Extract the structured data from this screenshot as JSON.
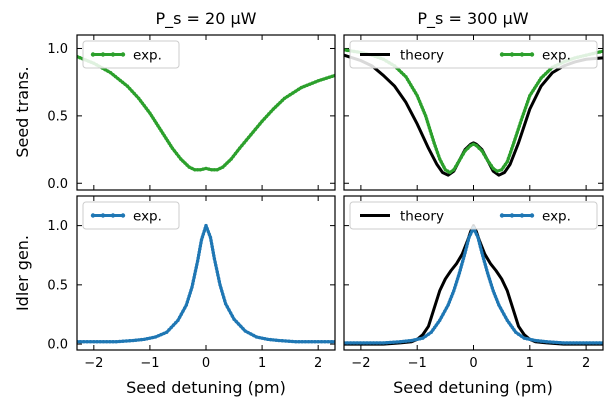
{
  "figure": {
    "column_titles": [
      "P_s = 20 μW",
      "P_s = 300 μW"
    ],
    "row_labels": [
      "Seed trans.",
      "Idler gen."
    ],
    "xlabel": "Seed detuning (pm)"
  },
  "colors": {
    "theory": "#000000",
    "seed_exp": "#2ca02c",
    "idler_exp": "#1f77b4"
  },
  "chart_data": [
    {
      "id": "seed_20uW",
      "type": "line",
      "title": "P_s = 20 μW",
      "ylabel": "Seed trans.",
      "xlabel": "",
      "xlim": [
        -2.3,
        2.3
      ],
      "ylim": [
        -0.05,
        1.1
      ],
      "xticks": [
        -2,
        -1,
        0,
        1,
        2
      ],
      "yticks": [
        0.0,
        0.5,
        1.0
      ],
      "legend": "top-left",
      "series": [
        {
          "name": "exp.",
          "color": "#2ca02c",
          "x": [
            -2.3,
            -2.0,
            -1.7,
            -1.4,
            -1.2,
            -1.0,
            -0.8,
            -0.6,
            -0.45,
            -0.3,
            -0.2,
            -0.1,
            0.0,
            0.1,
            0.2,
            0.3,
            0.45,
            0.6,
            0.8,
            1.0,
            1.2,
            1.4,
            1.7,
            2.0,
            2.3
          ],
          "y": [
            0.94,
            0.89,
            0.82,
            0.72,
            0.63,
            0.52,
            0.39,
            0.26,
            0.18,
            0.12,
            0.1,
            0.1,
            0.11,
            0.1,
            0.1,
            0.12,
            0.18,
            0.26,
            0.36,
            0.46,
            0.55,
            0.63,
            0.71,
            0.76,
            0.8
          ]
        }
      ]
    },
    {
      "id": "seed_300uW",
      "type": "line",
      "title": "P_s = 300 μW",
      "ylabel": "",
      "xlabel": "",
      "xlim": [
        -2.3,
        2.3
      ],
      "ylim": [
        -0.05,
        1.1
      ],
      "xticks": [
        -2,
        -1,
        0,
        1,
        2
      ],
      "yticks": [
        0.0,
        0.5,
        1.0
      ],
      "legend": "top",
      "series": [
        {
          "name": "theory",
          "color": "#000000",
          "x": [
            -2.3,
            -2.0,
            -1.8,
            -1.6,
            -1.4,
            -1.2,
            -1.0,
            -0.8,
            -0.65,
            -0.55,
            -0.45,
            -0.35,
            -0.25,
            -0.15,
            -0.05,
            0.0,
            0.05,
            0.15,
            0.25,
            0.35,
            0.45,
            0.55,
            0.65,
            0.8,
            1.0,
            1.2,
            1.4,
            1.6,
            1.8,
            2.0,
            2.3
          ],
          "y": [
            0.95,
            0.91,
            0.87,
            0.8,
            0.72,
            0.6,
            0.44,
            0.26,
            0.14,
            0.08,
            0.06,
            0.09,
            0.17,
            0.25,
            0.29,
            0.3,
            0.29,
            0.25,
            0.17,
            0.09,
            0.06,
            0.08,
            0.14,
            0.3,
            0.55,
            0.72,
            0.82,
            0.87,
            0.9,
            0.92,
            0.93
          ]
        },
        {
          "name": "exp.",
          "color": "#2ca02c",
          "x": [
            -2.3,
            -2.0,
            -1.8,
            -1.6,
            -1.4,
            -1.2,
            -1.0,
            -0.85,
            -0.7,
            -0.6,
            -0.5,
            -0.42,
            -0.35,
            -0.25,
            -0.15,
            -0.05,
            0.0,
            0.05,
            0.15,
            0.25,
            0.35,
            0.42,
            0.5,
            0.6,
            0.7,
            0.85,
            1.0,
            1.2,
            1.4,
            1.6,
            1.8,
            2.0,
            2.3
          ],
          "y": [
            0.99,
            0.97,
            0.95,
            0.92,
            0.87,
            0.79,
            0.65,
            0.5,
            0.3,
            0.18,
            0.1,
            0.08,
            0.1,
            0.17,
            0.24,
            0.28,
            0.29,
            0.28,
            0.24,
            0.17,
            0.11,
            0.09,
            0.1,
            0.16,
            0.28,
            0.47,
            0.65,
            0.78,
            0.86,
            0.9,
            0.93,
            0.95,
            0.98
          ]
        }
      ]
    },
    {
      "id": "idler_20uW",
      "type": "line",
      "title": "",
      "ylabel": "Idler gen.",
      "xlabel": "Seed detuning (pm)",
      "xlim": [
        -2.3,
        2.3
      ],
      "ylim": [
        -0.05,
        1.25
      ],
      "xticks": [
        -2,
        -1,
        0,
        1,
        2
      ],
      "yticks": [
        0.0,
        0.5,
        1.0
      ],
      "legend": "top-left",
      "series": [
        {
          "name": "exp.",
          "color": "#1f77b4",
          "x": [
            -2.3,
            -2.0,
            -1.6,
            -1.3,
            -1.1,
            -0.9,
            -0.7,
            -0.5,
            -0.35,
            -0.25,
            -0.15,
            -0.08,
            0.0,
            0.08,
            0.15,
            0.25,
            0.35,
            0.5,
            0.7,
            0.9,
            1.1,
            1.3,
            1.6,
            2.0,
            2.3
          ],
          "y": [
            0.02,
            0.02,
            0.02,
            0.03,
            0.04,
            0.06,
            0.1,
            0.2,
            0.33,
            0.48,
            0.7,
            0.88,
            1.0,
            0.9,
            0.72,
            0.5,
            0.34,
            0.21,
            0.11,
            0.06,
            0.04,
            0.03,
            0.02,
            0.02,
            0.02
          ]
        }
      ]
    },
    {
      "id": "idler_300uW",
      "type": "line",
      "title": "",
      "ylabel": "",
      "xlabel": "Seed detuning (pm)",
      "xlim": [
        -2.3,
        2.3
      ],
      "ylim": [
        -0.05,
        1.25
      ],
      "xticks": [
        -2,
        -1,
        0,
        1,
        2
      ],
      "yticks": [
        0.0,
        0.5,
        1.0
      ],
      "legend": "top",
      "series": [
        {
          "name": "theory",
          "color": "#000000",
          "x": [
            -2.3,
            -1.6,
            -1.3,
            -1.1,
            -1.0,
            -0.9,
            -0.8,
            -0.7,
            -0.6,
            -0.5,
            -0.4,
            -0.3,
            -0.2,
            -0.1,
            -0.05,
            0.0,
            0.05,
            0.1,
            0.2,
            0.3,
            0.4,
            0.5,
            0.6,
            0.7,
            0.8,
            0.9,
            1.0,
            1.1,
            1.3,
            1.6,
            2.3
          ],
          "y": [
            0.0,
            0.0,
            0.01,
            0.02,
            0.04,
            0.08,
            0.15,
            0.3,
            0.45,
            0.55,
            0.62,
            0.68,
            0.76,
            0.88,
            0.95,
            1.0,
            0.95,
            0.88,
            0.76,
            0.68,
            0.62,
            0.55,
            0.45,
            0.3,
            0.15,
            0.08,
            0.04,
            0.02,
            0.01,
            0.0,
            0.0
          ]
        },
        {
          "name": "exp.",
          "color": "#1f77b4",
          "x": [
            -2.3,
            -1.6,
            -1.3,
            -1.1,
            -0.9,
            -0.75,
            -0.6,
            -0.45,
            -0.35,
            -0.25,
            -0.15,
            -0.08,
            0.0,
            0.08,
            0.15,
            0.25,
            0.35,
            0.45,
            0.6,
            0.75,
            0.9,
            1.1,
            1.3,
            1.6,
            2.3
          ],
          "y": [
            0.01,
            0.01,
            0.02,
            0.03,
            0.05,
            0.1,
            0.2,
            0.33,
            0.45,
            0.6,
            0.77,
            0.9,
            0.98,
            0.9,
            0.77,
            0.6,
            0.45,
            0.33,
            0.2,
            0.1,
            0.05,
            0.03,
            0.02,
            0.01,
            0.01
          ]
        }
      ]
    }
  ]
}
